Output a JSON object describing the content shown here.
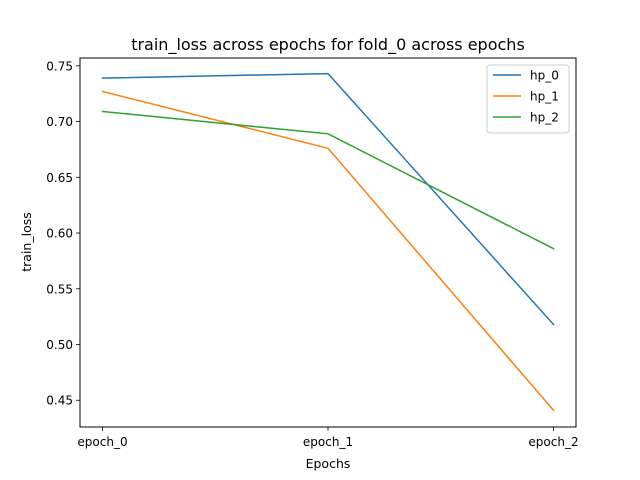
{
  "chart_data": {
    "type": "line",
    "title": "train_loss across epochs for fold_0 across epochs",
    "xlabel": "Epochs",
    "ylabel": "train_loss",
    "categories": [
      "epoch_0",
      "epoch_1",
      "epoch_2"
    ],
    "ylim": [
      0.426,
      0.757
    ],
    "yticks": [
      0.45,
      0.5,
      0.55,
      0.6,
      0.65,
      0.7,
      0.75
    ],
    "ytick_labels": [
      "0.45",
      "0.50",
      "0.55",
      "0.60",
      "0.65",
      "0.70",
      "0.75"
    ],
    "grid": false,
    "legend_position": "top-right",
    "series": [
      {
        "name": "hp_0",
        "color": "#1f77b4",
        "values": [
          0.739,
          0.743,
          0.518
        ]
      },
      {
        "name": "hp_1",
        "color": "#ff7f0e",
        "values": [
          0.727,
          0.676,
          0.441
        ]
      },
      {
        "name": "hp_2",
        "color": "#2ca02c",
        "values": [
          0.709,
          0.689,
          0.586
        ]
      }
    ]
  }
}
